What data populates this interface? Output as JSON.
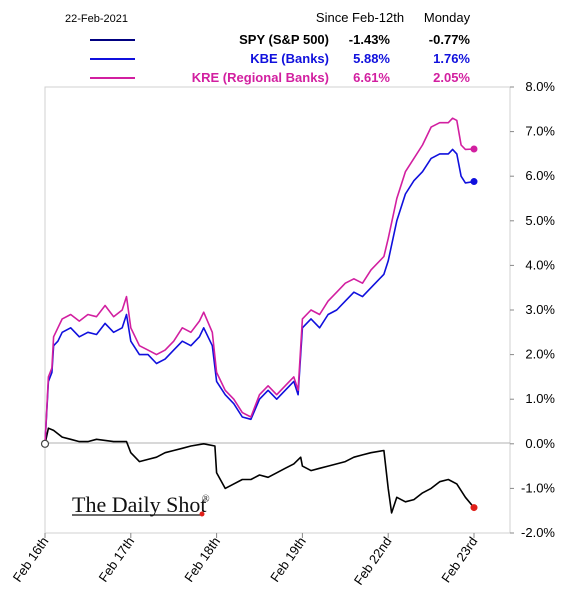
{
  "header": {
    "date": "22-Feb-2021",
    "col_since": "Since Feb-12th",
    "col_monday": "Monday"
  },
  "brand": {
    "text": "The Daily Shot",
    "mark": "®"
  },
  "chart_data": {
    "type": "line",
    "x_categories": [
      "Feb 16th",
      "Feb 17th",
      "Feb 18th",
      "Feb 19th",
      "Feb 22nd",
      "Feb 23rd"
    ],
    "ylim": [
      -2.0,
      8.0
    ],
    "y_ticks": [
      8.0,
      7.0,
      6.0,
      5.0,
      4.0,
      3.0,
      2.0,
      1.0,
      0.0,
      -1.0,
      -2.0
    ],
    "y_tick_labels": [
      "8.0%",
      "7.0%",
      "6.0%",
      "5.0%",
      "4.0%",
      "3.0%",
      "2.0%",
      "1.0%",
      "0.0%",
      "-1.0%",
      "-2.0%"
    ],
    "y_axis_side": "right",
    "grid": false,
    "legend_position": "top",
    "series": [
      {
        "name": "SPY (S&P 500)",
        "since": "-1.43%",
        "monday": "-0.77%",
        "color": "#000000",
        "points": [
          [
            0,
            0.0
          ],
          [
            0.04,
            0.35
          ],
          [
            0.1,
            0.3
          ],
          [
            0.2,
            0.15
          ],
          [
            0.3,
            0.1
          ],
          [
            0.4,
            0.05
          ],
          [
            0.5,
            0.05
          ],
          [
            0.6,
            0.1
          ],
          [
            0.8,
            0.05
          ],
          [
            0.95,
            0.05
          ],
          [
            1.0,
            -0.2
          ],
          [
            1.1,
            -0.4
          ],
          [
            1.2,
            -0.35
          ],
          [
            1.3,
            -0.3
          ],
          [
            1.4,
            -0.2
          ],
          [
            1.5,
            -0.15
          ],
          [
            1.6,
            -0.1
          ],
          [
            1.7,
            -0.05
          ],
          [
            1.85,
            -0.0
          ],
          [
            1.98,
            -0.05
          ],
          [
            2.0,
            -0.65
          ],
          [
            2.1,
            -1.0
          ],
          [
            2.2,
            -0.9
          ],
          [
            2.3,
            -0.8
          ],
          [
            2.4,
            -0.8
          ],
          [
            2.5,
            -0.7
          ],
          [
            2.6,
            -0.75
          ],
          [
            2.7,
            -0.65
          ],
          [
            2.8,
            -0.55
          ],
          [
            2.9,
            -0.45
          ],
          [
            2.98,
            -0.3
          ],
          [
            3.0,
            -0.5
          ],
          [
            3.1,
            -0.6
          ],
          [
            3.2,
            -0.55
          ],
          [
            3.3,
            -0.5
          ],
          [
            3.4,
            -0.45
          ],
          [
            3.5,
            -0.4
          ],
          [
            3.6,
            -0.3
          ],
          [
            3.7,
            -0.25
          ],
          [
            3.8,
            -0.2
          ],
          [
            3.95,
            -0.15
          ],
          [
            4.0,
            -1.0
          ],
          [
            4.04,
            -1.55
          ],
          [
            4.1,
            -1.2
          ],
          [
            4.2,
            -1.3
          ],
          [
            4.3,
            -1.25
          ],
          [
            4.4,
            -1.1
          ],
          [
            4.5,
            -1.0
          ],
          [
            4.6,
            -0.85
          ],
          [
            4.7,
            -0.8
          ],
          [
            4.8,
            -0.9
          ],
          [
            4.9,
            -1.2
          ],
          [
            5.0,
            -1.43
          ]
        ]
      },
      {
        "name": "KBE (Banks)",
        "since": "5.88%",
        "monday": "1.76%",
        "color": "#1010dd",
        "points": [
          [
            0,
            0.0
          ],
          [
            0.04,
            1.4
          ],
          [
            0.08,
            1.6
          ],
          [
            0.1,
            2.2
          ],
          [
            0.15,
            2.3
          ],
          [
            0.2,
            2.5
          ],
          [
            0.3,
            2.6
          ],
          [
            0.4,
            2.4
          ],
          [
            0.5,
            2.5
          ],
          [
            0.6,
            2.45
          ],
          [
            0.7,
            2.7
          ],
          [
            0.8,
            2.5
          ],
          [
            0.9,
            2.6
          ],
          [
            0.95,
            2.9
          ],
          [
            1.0,
            2.3
          ],
          [
            1.1,
            2.0
          ],
          [
            1.2,
            2.0
          ],
          [
            1.3,
            1.8
          ],
          [
            1.4,
            1.9
          ],
          [
            1.5,
            2.1
          ],
          [
            1.6,
            2.3
          ],
          [
            1.7,
            2.2
          ],
          [
            1.8,
            2.4
          ],
          [
            1.85,
            2.6
          ],
          [
            1.95,
            2.2
          ],
          [
            2.0,
            1.4
          ],
          [
            2.05,
            1.25
          ],
          [
            2.1,
            1.1
          ],
          [
            2.2,
            0.9
          ],
          [
            2.3,
            0.6
          ],
          [
            2.4,
            0.55
          ],
          [
            2.5,
            1.0
          ],
          [
            2.6,
            1.2
          ],
          [
            2.7,
            1.0
          ],
          [
            2.8,
            1.2
          ],
          [
            2.9,
            1.4
          ],
          [
            2.95,
            1.1
          ],
          [
            3.0,
            2.6
          ],
          [
            3.1,
            2.8
          ],
          [
            3.2,
            2.6
          ],
          [
            3.3,
            2.9
          ],
          [
            3.4,
            3.0
          ],
          [
            3.5,
            3.2
          ],
          [
            3.6,
            3.4
          ],
          [
            3.7,
            3.3
          ],
          [
            3.8,
            3.5
          ],
          [
            3.95,
            3.8
          ],
          [
            4.0,
            4.1
          ],
          [
            4.1,
            5.0
          ],
          [
            4.2,
            5.6
          ],
          [
            4.3,
            5.9
          ],
          [
            4.4,
            6.1
          ],
          [
            4.5,
            6.4
          ],
          [
            4.6,
            6.5
          ],
          [
            4.7,
            6.5
          ],
          [
            4.75,
            6.6
          ],
          [
            4.8,
            6.5
          ],
          [
            4.85,
            6.0
          ],
          [
            4.9,
            5.85
          ],
          [
            5.0,
            5.88
          ]
        ]
      },
      {
        "name": "KRE (Regional Banks)",
        "since": "6.61%",
        "monday": "2.05%",
        "color": "#d21fa0",
        "points": [
          [
            0,
            0.0
          ],
          [
            0.04,
            1.5
          ],
          [
            0.08,
            1.7
          ],
          [
            0.1,
            2.4
          ],
          [
            0.15,
            2.6
          ],
          [
            0.2,
            2.8
          ],
          [
            0.3,
            2.9
          ],
          [
            0.4,
            2.75
          ],
          [
            0.5,
            2.9
          ],
          [
            0.6,
            2.85
          ],
          [
            0.7,
            3.1
          ],
          [
            0.8,
            2.85
          ],
          [
            0.9,
            3.0
          ],
          [
            0.95,
            3.3
          ],
          [
            1.0,
            2.6
          ],
          [
            1.1,
            2.2
          ],
          [
            1.2,
            2.1
          ],
          [
            1.3,
            2.0
          ],
          [
            1.4,
            2.1
          ],
          [
            1.5,
            2.3
          ],
          [
            1.6,
            2.6
          ],
          [
            1.7,
            2.5
          ],
          [
            1.8,
            2.75
          ],
          [
            1.85,
            2.95
          ],
          [
            1.95,
            2.5
          ],
          [
            2.0,
            1.6
          ],
          [
            2.05,
            1.4
          ],
          [
            2.1,
            1.2
          ],
          [
            2.2,
            1.0
          ],
          [
            2.3,
            0.7
          ],
          [
            2.4,
            0.6
          ],
          [
            2.5,
            1.1
          ],
          [
            2.6,
            1.3
          ],
          [
            2.7,
            1.1
          ],
          [
            2.8,
            1.3
          ],
          [
            2.9,
            1.5
          ],
          [
            2.95,
            1.2
          ],
          [
            3.0,
            2.8
          ],
          [
            3.1,
            3.0
          ],
          [
            3.2,
            2.9
          ],
          [
            3.3,
            3.2
          ],
          [
            3.4,
            3.4
          ],
          [
            3.5,
            3.6
          ],
          [
            3.6,
            3.7
          ],
          [
            3.7,
            3.6
          ],
          [
            3.8,
            3.9
          ],
          [
            3.95,
            4.2
          ],
          [
            4.0,
            4.6
          ],
          [
            4.1,
            5.5
          ],
          [
            4.2,
            6.1
          ],
          [
            4.3,
            6.4
          ],
          [
            4.4,
            6.7
          ],
          [
            4.5,
            7.1
          ],
          [
            4.6,
            7.2
          ],
          [
            4.7,
            7.2
          ],
          [
            4.75,
            7.3
          ],
          [
            4.8,
            7.25
          ],
          [
            4.85,
            6.7
          ],
          [
            4.9,
            6.6
          ],
          [
            5.0,
            6.61
          ]
        ]
      }
    ]
  }
}
